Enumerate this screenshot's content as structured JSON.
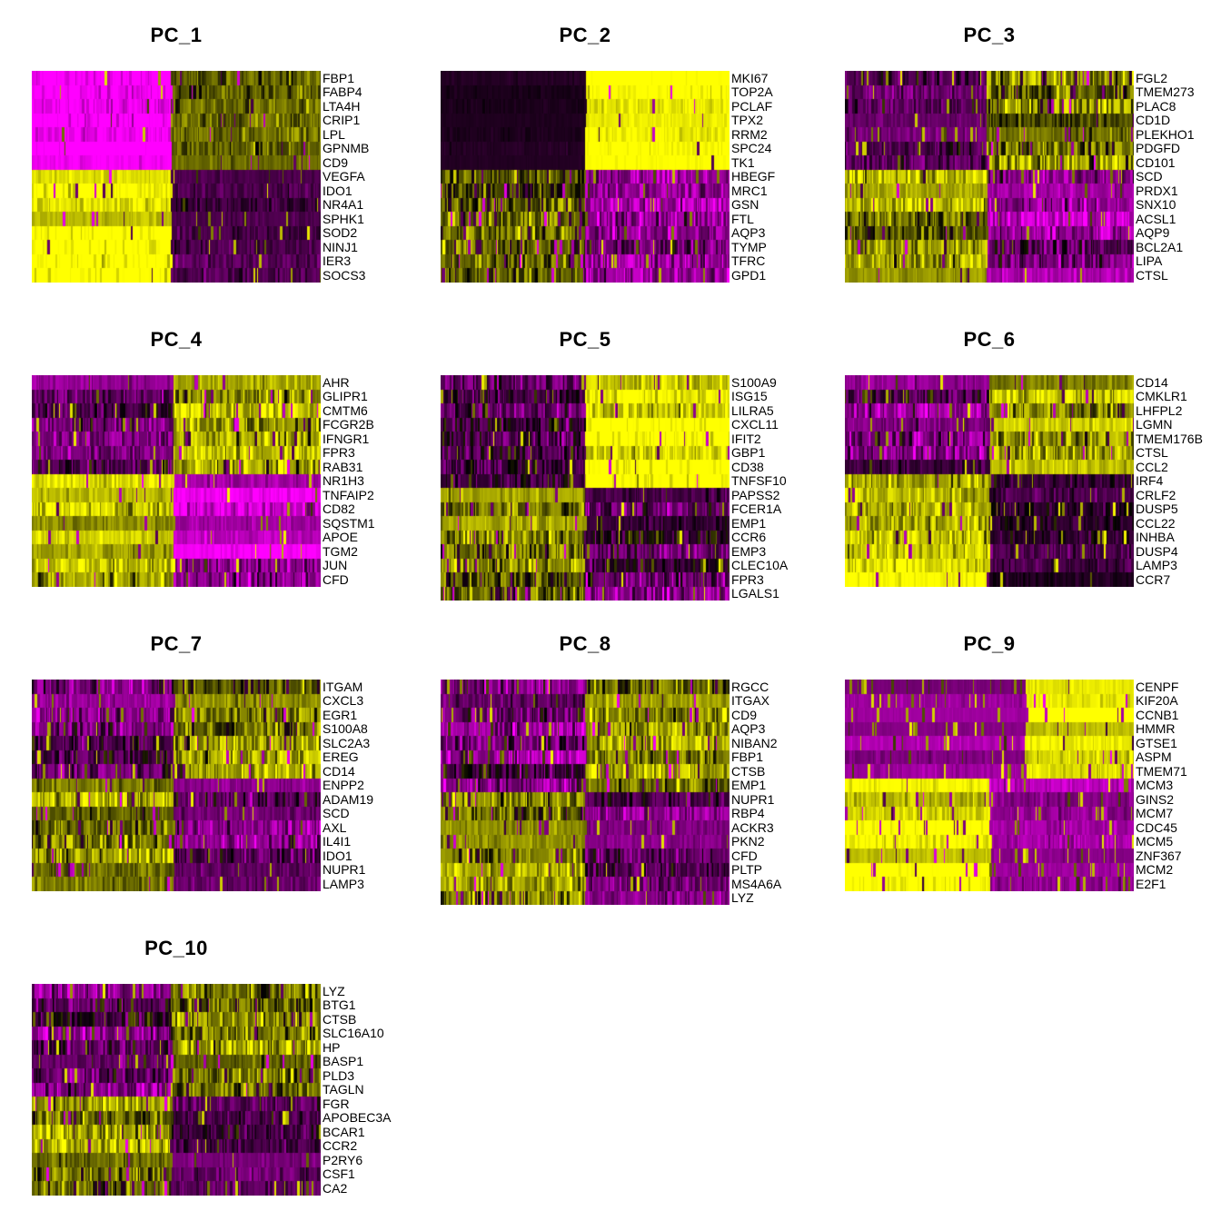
{
  "figure": {
    "kind": "PCA dimension heatmaps (10 principal components, single-cell expression)",
    "palette": {
      "low": "#FF00FF",
      "mid": "#000000",
      "high": "#FFFF00",
      "background": "#FFFFFF",
      "title_color": "#000000"
    },
    "layout": {
      "columns": 3,
      "rows": 4,
      "legend": "none",
      "axes": "none (gene labels on right side of each heatmap)"
    }
  },
  "chart_data": [
    {
      "type": "heatmap",
      "title": "PC_1",
      "genes": [
        "FBP1",
        "FABP4",
        "LTA4H",
        "CRIP1",
        "LPL",
        "GPNMB",
        "CD9",
        "VEGFA",
        "IDO1",
        "NR4A1",
        "SPHK1",
        "SOD2",
        "NINJ1",
        "IER3",
        "SOCS3"
      ],
      "x_axis": "cells ordered by PC_1 score",
      "top_rows": 7,
      "split": 0.48,
      "seed": 1,
      "blocks": {
        "tl": {
          "mean": -2.7,
          "sd": 0.8,
          "spike": 0.02
        },
        "tr": {
          "mean": 0.85,
          "sd": 0.75,
          "spike": 0.03
        },
        "bl": {
          "mean": 2.7,
          "sd": 0.8,
          "spike": 0.02
        },
        "br": {
          "mean": -0.55,
          "sd": 0.45,
          "spike": 0.05
        }
      }
    },
    {
      "type": "heatmap",
      "title": "PC_2",
      "genes": [
        "MKI67",
        "TOP2A",
        "PCLAF",
        "TPX2",
        "RRM2",
        "SPC24",
        "TK1",
        "HBEGF",
        "MRC1",
        "GSN",
        "FTL",
        "AQP3",
        "TYMP",
        "TFRC",
        "GPD1"
      ],
      "x_axis": "cells ordered by PC_2 score",
      "top_rows": 7,
      "split": 0.5,
      "seed": 2,
      "blocks": {
        "tl": {
          "mean": -0.25,
          "sd": 0.1,
          "spike": 0
        },
        "tr": {
          "mean": 2.8,
          "sd": 0.55,
          "spike": 0.02
        },
        "bl": {
          "mean": 0.8,
          "sd": 1.25,
          "spike": 0.06
        },
        "br": {
          "mean": -1.4,
          "sd": 1.05,
          "spike": 0.04
        }
      }
    },
    {
      "type": "heatmap",
      "title": "PC_3",
      "genes": [
        "FGL2",
        "TMEM273",
        "PLAC8",
        "CD1D",
        "PLEKHO1",
        "PDGFD",
        "CD101",
        "SCD",
        "PRDX1",
        "SNX10",
        "ACSL1",
        "AQP9",
        "BCL2A1",
        "LIPA",
        "CTSL"
      ],
      "x_axis": "cells ordered by PC_3 score",
      "top_rows": 7,
      "split": 0.49,
      "seed": 3,
      "blocks": {
        "tl": {
          "mean": -0.95,
          "sd": 0.7,
          "spike": 0.05
        },
        "tr": {
          "mean": 1.2,
          "sd": 1.5,
          "spike": 0.05
        },
        "bl": {
          "mean": 1.4,
          "sd": 1.2,
          "spike": 0.04
        },
        "br": {
          "mean": -1.6,
          "sd": 1.1,
          "spike": 0.05
        }
      }
    },
    {
      "type": "heatmap",
      "title": "PC_4",
      "genes": [
        "AHR",
        "GLIPR1",
        "CMTM6",
        "FCGR2B",
        "IFNGR1",
        "FPR3",
        "RAB31",
        "NR1H3",
        "TNFAIP2",
        "CD82",
        "SQSTM1",
        "APOE",
        "TGM2",
        "JUN",
        "CFD"
      ],
      "x_axis": "cells ordered by PC_4 score",
      "top_rows": 7,
      "split": 0.49,
      "seed": 4,
      "blocks": {
        "tl": {
          "mean": -1.0,
          "sd": 0.85,
          "spike": 0.06
        },
        "tr": {
          "mean": 1.9,
          "sd": 1.3,
          "spike": 0.04
        },
        "bl": {
          "mean": 1.8,
          "sd": 1.1,
          "spike": 0.03
        },
        "br": {
          "mean": -1.9,
          "sd": 1.0,
          "spike": 0.04
        }
      }
    },
    {
      "type": "heatmap",
      "title": "PC_5",
      "genes": [
        "S100A9",
        "ISG15",
        "LILRA5",
        "CXCL11",
        "IFIT2",
        "GBP1",
        "CD38",
        "TNFSF10",
        "PAPSS2",
        "FCER1A",
        "EMP1",
        "CCR6",
        "EMP3",
        "CLEC10A",
        "FPR3",
        "LGALS1"
      ],
      "x_axis": "cells ordered by PC_5 score",
      "top_rows": 8,
      "split": 0.5,
      "seed": 5,
      "blocks": {
        "tl": {
          "mean": -0.85,
          "sd": 0.95,
          "spike": 0.05
        },
        "tr": {
          "mean": 2.5,
          "sd": 0.9,
          "spike": 0.03
        },
        "bl": {
          "mean": 1.2,
          "sd": 1.3,
          "spike": 0.05
        },
        "br": {
          "mean": -0.8,
          "sd": 1.0,
          "spike": 0.05
        }
      }
    },
    {
      "type": "heatmap",
      "title": "PC_6",
      "genes": [
        "CD14",
        "CMKLR1",
        "LHFPL2",
        "LGMN",
        "TMEM176B",
        "CTSL",
        "CCL2",
        "IRF4",
        "CRLF2",
        "DUSP5",
        "CCL22",
        "INHBA",
        "DUSP4",
        "LAMP3",
        "CCR7"
      ],
      "x_axis": "cells ordered by PC_6 score",
      "top_rows": 7,
      "split": 0.5,
      "seed": 6,
      "blocks": {
        "tl": {
          "mean": -1.1,
          "sd": 1.1,
          "spike": 0.05
        },
        "tr": {
          "mean": 1.8,
          "sd": 1.2,
          "spike": 0.04
        },
        "bl": {
          "mean": 2.1,
          "sd": 1.0,
          "spike": 0.04
        },
        "br": {
          "mean": -0.45,
          "sd": 0.5,
          "spike": 0.05
        }
      }
    },
    {
      "type": "heatmap",
      "title": "PC_7",
      "genes": [
        "ITGAM",
        "CXCL3",
        "EGR1",
        "S100A8",
        "SLC2A3",
        "EREG",
        "CD14",
        "ENPP2",
        "ADAM19",
        "SCD",
        "AXL",
        "IL4I1",
        "IDO1",
        "NUPR1",
        "LAMP3"
      ],
      "x_axis": "cells ordered by PC_7 score",
      "top_rows": 7,
      "split": 0.49,
      "seed": 7,
      "blocks": {
        "tl": {
          "mean": -0.95,
          "sd": 1.0,
          "spike": 0.06
        },
        "tr": {
          "mean": 1.6,
          "sd": 1.25,
          "spike": 0.05
        },
        "bl": {
          "mean": 1.35,
          "sd": 1.35,
          "spike": 0.06
        },
        "br": {
          "mean": -1.0,
          "sd": 0.95,
          "spike": 0.05
        }
      }
    },
    {
      "type": "heatmap",
      "title": "PC_8",
      "genes": [
        "RGCC",
        "ITGAX",
        "CD9",
        "AQP3",
        "NIBAN2",
        "FBP1",
        "CTSB",
        "EMP1",
        "NUPR1",
        "RBP4",
        "ACKR3",
        "PKN2",
        "CFD",
        "PLTP",
        "MS4A6A",
        "LYZ"
      ],
      "x_axis": "cells ordered by PC_8 score",
      "top_rows": 8,
      "split": 0.5,
      "seed": 8,
      "blocks": {
        "tl": {
          "mean": -1.2,
          "sd": 1.1,
          "spike": 0.06
        },
        "tr": {
          "mean": 1.5,
          "sd": 1.2,
          "spike": 0.05
        },
        "bl": {
          "mean": 1.3,
          "sd": 1.2,
          "spike": 0.05
        },
        "br": {
          "mean": -1.1,
          "sd": 0.85,
          "spike": 0.04
        }
      }
    },
    {
      "type": "heatmap",
      "title": "PC_9",
      "genes": [
        "CENPF",
        "KIF20A",
        "CCNB1",
        "HMMR",
        "GTSE1",
        "ASPM",
        "TMEM71",
        "MCM3",
        "GINS2",
        "MCM7",
        "CDC45",
        "MCM5",
        "ZNF367",
        "MCM2",
        "E2F1"
      ],
      "x_axis": "cells ordered by PC_9 score",
      "top_rows": 7,
      "split": 0.55,
      "split_top": 0.62,
      "split_bottom": 0.5,
      "seed": 9,
      "blocks": {
        "tl": {
          "mean": -1.55,
          "sd": 0.3,
          "spike": 0.1
        },
        "tr": {
          "mean": 2.6,
          "sd": 0.6,
          "spike": 0.07
        },
        "bl": {
          "mean": 2.55,
          "sd": 0.6,
          "spike": 0.07
        },
        "br": {
          "mean": -1.5,
          "sd": 0.5,
          "spike": 0.07
        }
      }
    },
    {
      "type": "heatmap",
      "title": "PC_10",
      "genes": [
        "LYZ",
        "BTG1",
        "CTSB",
        "SLC16A10",
        "HP",
        "BASP1",
        "PLD3",
        "TAGLN",
        "FGR",
        "APOBEC3A",
        "BCAR1",
        "CCR2",
        "P2RY6",
        "CSF1",
        "CA2"
      ],
      "x_axis": "cells ordered by PC_10 score",
      "top_rows": 8,
      "split": 0.48,
      "seed": 10,
      "blocks": {
        "tl": {
          "mean": -0.85,
          "sd": 1.1,
          "spike": 0.06
        },
        "tr": {
          "mean": 1.3,
          "sd": 1.25,
          "spike": 0.05
        },
        "bl": {
          "mean": 1.25,
          "sd": 1.3,
          "spike": 0.06
        },
        "br": {
          "mean": -0.7,
          "sd": 0.65,
          "spike": 0.05
        }
      }
    }
  ]
}
